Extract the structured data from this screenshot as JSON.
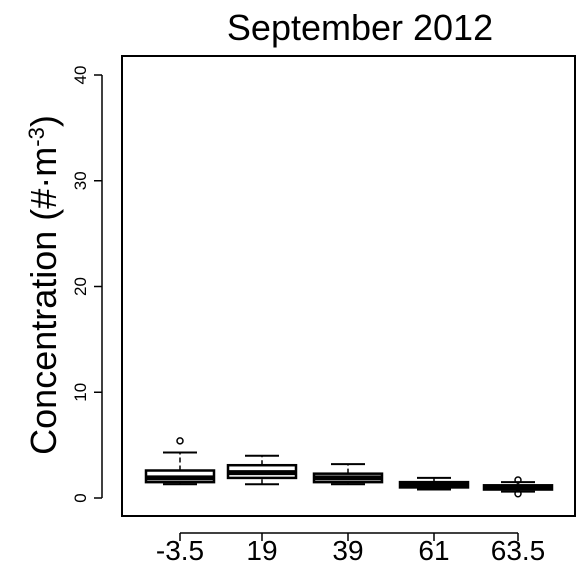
{
  "chart_data": {
    "type": "box",
    "title": "September 2012",
    "ylabel_main": "Concentration (#·m",
    "ylabel_sup": "-3",
    "ylabel_close": ")",
    "ylim": [
      0,
      40
    ],
    "yticks": [
      0,
      10,
      20,
      30,
      40
    ],
    "categories": [
      "-3.5",
      "19",
      "39",
      "61",
      "63.5"
    ],
    "boxes": [
      {
        "category": "-3.5",
        "whisker_low": 1.3,
        "q1": 1.5,
        "median": 1.9,
        "q3": 2.6,
        "whisker_high": 4.3,
        "outliers": [
          5.4
        ]
      },
      {
        "category": "19",
        "whisker_low": 1.3,
        "q1": 1.9,
        "median": 2.4,
        "q3": 3.1,
        "whisker_high": 4.0,
        "outliers": []
      },
      {
        "category": "39",
        "whisker_low": 1.3,
        "q1": 1.5,
        "median": 1.9,
        "q3": 2.3,
        "whisker_high": 3.2,
        "outliers": []
      },
      {
        "category": "61",
        "whisker_low": 0.8,
        "q1": 1.0,
        "median": 1.2,
        "q3": 1.5,
        "whisker_high": 1.9,
        "outliers": []
      },
      {
        "category": "63.5",
        "whisker_low": 0.6,
        "q1": 0.8,
        "median": 1.0,
        "q3": 1.2,
        "whisker_high": 1.5,
        "outliers": [
          0.4,
          1.7
        ]
      }
    ],
    "grid": false,
    "colors": {
      "box": "#000000",
      "fill": "#ffffff",
      "background": "#ffffff"
    }
  }
}
